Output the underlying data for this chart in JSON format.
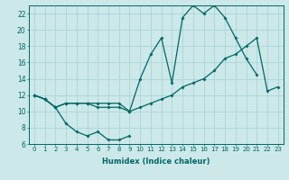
{
  "xlabel": "Humidex (Indice chaleur)",
  "bg_color": "#cce8e8",
  "line_color": "#006666",
  "ylim": [
    6,
    23
  ],
  "xlim": [
    -0.5,
    23.5
  ],
  "yticks": [
    6,
    8,
    10,
    12,
    14,
    16,
    18,
    20,
    22
  ],
  "xticks": [
    0,
    1,
    2,
    3,
    4,
    5,
    6,
    7,
    8,
    9,
    10,
    11,
    12,
    13,
    14,
    15,
    16,
    17,
    18,
    19,
    20,
    21,
    22,
    23
  ],
  "series1_x": [
    0,
    1,
    2,
    3,
    4,
    5,
    6,
    7,
    8,
    9,
    10,
    11,
    12,
    13,
    14,
    15,
    16,
    17,
    18,
    19,
    20,
    21
  ],
  "series1_y": [
    12,
    11.5,
    10.5,
    11,
    11,
    11,
    11,
    11,
    11,
    10,
    14,
    17,
    19,
    13.5,
    21.5,
    23,
    22,
    23,
    21.5,
    19,
    16.5,
    14.5
  ],
  "series2_x": [
    0,
    1,
    2,
    3,
    4,
    5,
    6,
    7,
    8,
    9,
    10,
    11,
    12,
    13,
    14,
    15,
    16,
    17,
    18,
    19,
    20,
    21,
    22,
    23
  ],
  "series2_y": [
    12,
    11.5,
    10.5,
    11,
    11,
    11,
    10.5,
    10.5,
    10.5,
    10,
    10.5,
    11,
    11.5,
    12,
    13,
    13.5,
    14,
    15,
    16.5,
    17,
    18,
    19,
    12.5,
    13
  ],
  "series3_x": [
    0,
    1,
    2,
    3,
    4,
    5,
    6,
    7,
    8,
    9
  ],
  "series3_y": [
    12,
    11.5,
    10.5,
    8.5,
    7.5,
    7,
    7.5,
    6.5,
    6.5,
    7
  ]
}
